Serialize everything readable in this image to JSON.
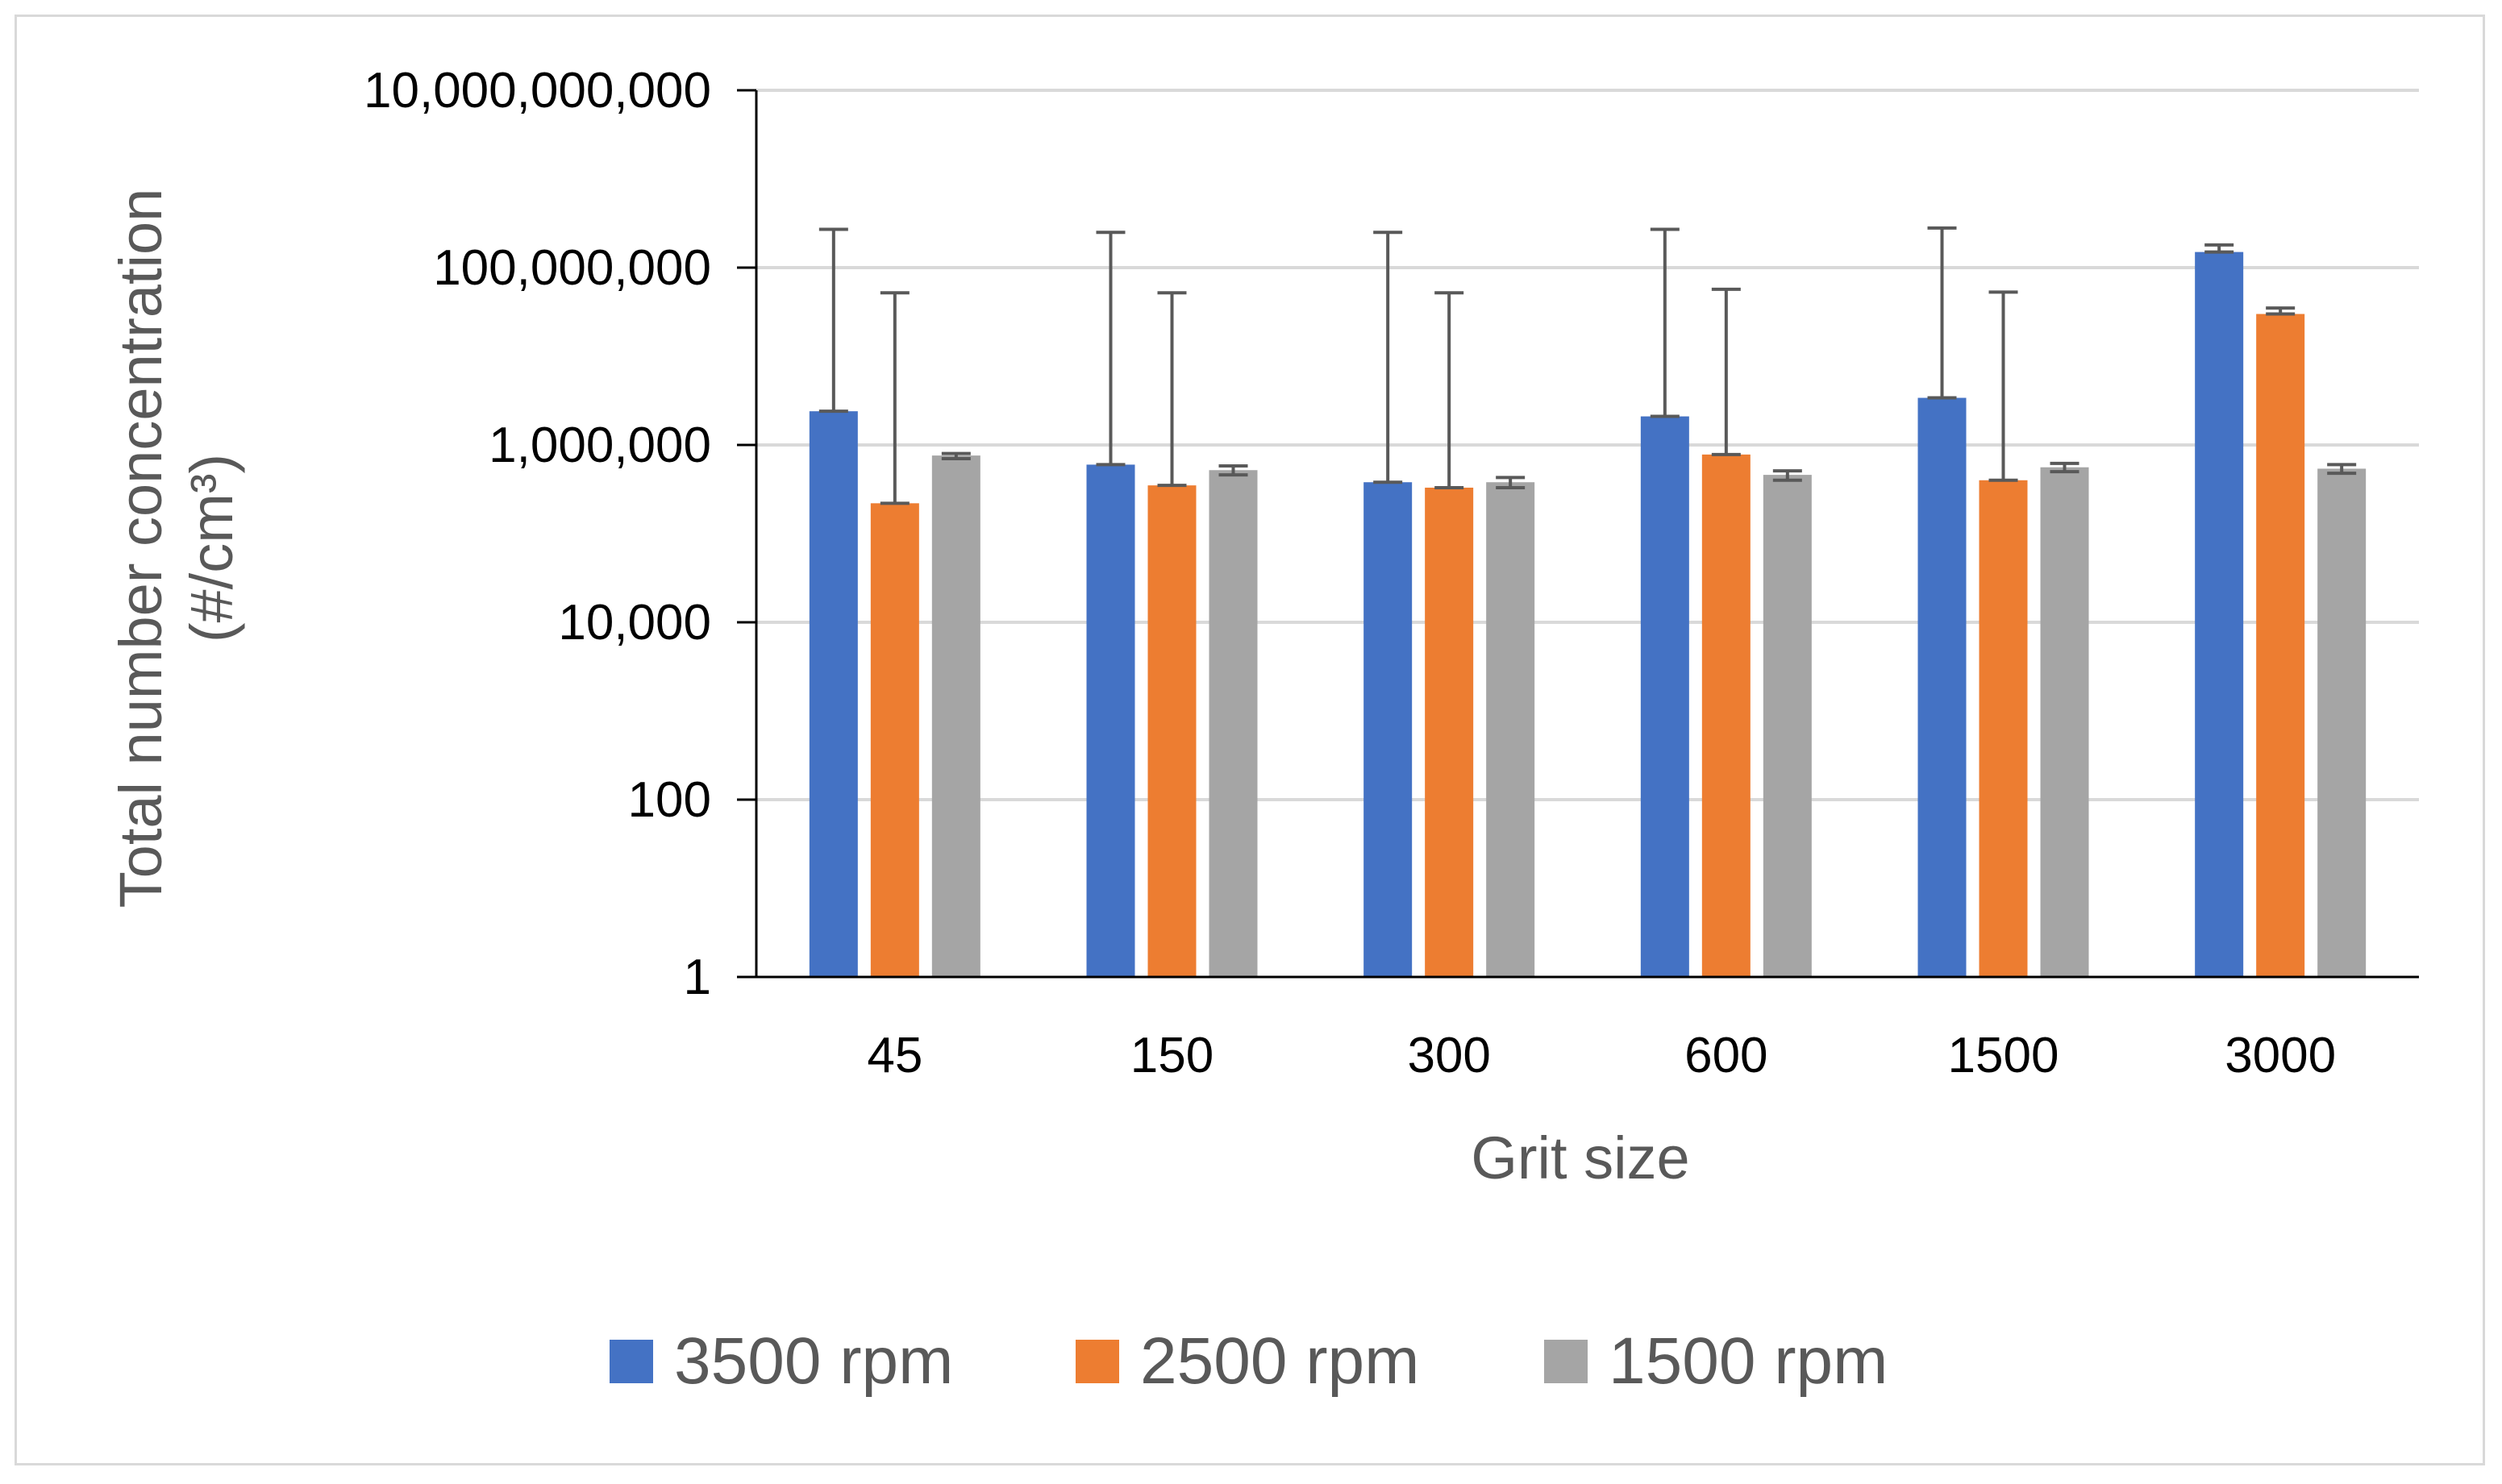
{
  "chart_data": {
    "type": "bar",
    "title": "",
    "xlabel": "Grit size",
    "ylabel_line1": "Total number concentration",
    "ylabel_line2": "(#/cm³)",
    "yscale": "log",
    "ylim": [
      1,
      10000000000
    ],
    "yticks": [
      {
        "value": 1,
        "label": "1"
      },
      {
        "value": 100,
        "label": "100"
      },
      {
        "value": 10000,
        "label": "10,000"
      },
      {
        "value": 1000000,
        "label": "1,000,000"
      },
      {
        "value": 100000000,
        "label": "100,000,000"
      },
      {
        "value": 10000000000,
        "label": "10,000,000,000"
      }
    ],
    "categories": [
      "45",
      "150",
      "300",
      "600",
      "1500",
      "3000"
    ],
    "legend_position": "bottom",
    "series": [
      {
        "name": "3500 rpm",
        "color": "#4472c4",
        "values": [
          2400000,
          600000,
          380000,
          2100000,
          3400000,
          150000000
        ],
        "error_plus": [
          270000000,
          250000000,
          250000000,
          270000000,
          280000000,
          180000000
        ]
      },
      {
        "name": "2500 rpm",
        "color": "#ed7d31",
        "values": [
          220000,
          350000,
          330000,
          780000,
          400000,
          30000000
        ],
        "error_plus": [
          52000000,
          52000000,
          52000000,
          57000000,
          53000000,
          35000000
        ]
      },
      {
        "name": "1500 rpm",
        "color": "#a5a5a5",
        "values": [
          760000,
          520000,
          380000,
          460000,
          560000,
          540000
        ],
        "error_plus": [
          800000,
          580000,
          430000,
          510000,
          620000,
          600000
        ],
        "error_minus": [
          700000,
          460000,
          330000,
          400000,
          500000,
          480000
        ]
      }
    ]
  }
}
